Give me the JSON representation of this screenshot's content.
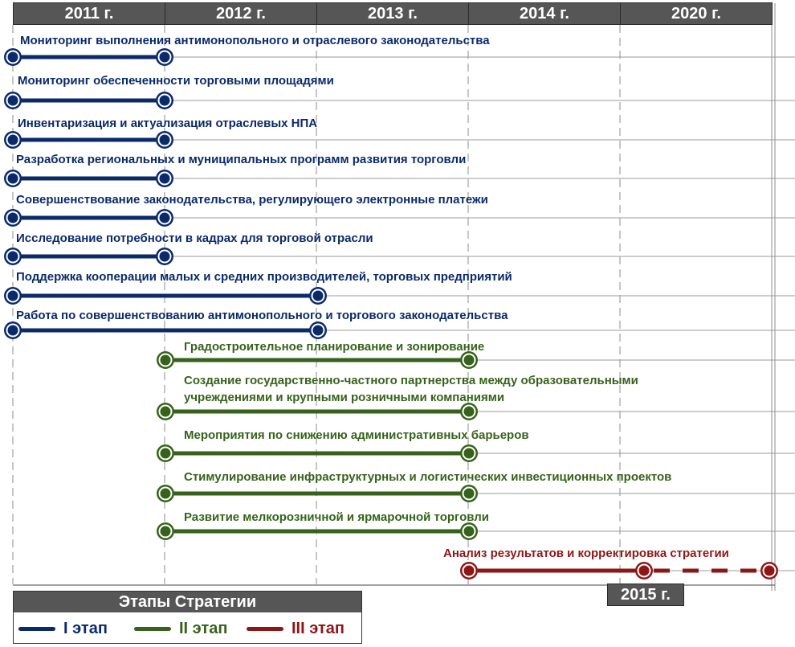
{
  "years": [
    "2011 г.",
    "2012 г.",
    "2013 г.",
    "2014 г.",
    "2020 г."
  ],
  "badge_year": "2015 г.",
  "colors": {
    "stage1": "#0b2a6a",
    "stage2": "#36621b",
    "stage3": "#8e1616",
    "header": "#565656"
  },
  "tasks": [
    {
      "label": "Мониторинг выполнения антимонопольного и отраслевого законодательства",
      "stage": 1
    },
    {
      "label": "Мониторинг обеспеченности торговыми площадями",
      "stage": 1
    },
    {
      "label": "Инвентаризация и актуализация отраслевых НПА",
      "stage": 1
    },
    {
      "label": "Разработка региональных и муниципальных программ развития торговли",
      "stage": 1
    },
    {
      "label": "Совершенствование законодательства, регулирующего электронные платежи",
      "stage": 1
    },
    {
      "label": "Исследование потребности в кадрах для торговой отрасли",
      "stage": 1
    },
    {
      "label": "Поддержка кооперации малых и средних производителей, торговых предприятий",
      "stage": 1
    },
    {
      "label": "Работа по совершенствованию антимонопольного и торгового законодательства",
      "stage": 1
    },
    {
      "label": "Градостроительное планирование и зонирование",
      "stage": 2
    },
    {
      "label_lines": [
        "Создание государственно-частного партнерства между образовательными",
        "учреждениями и крупными розничными компаниями"
      ],
      "stage": 2
    },
    {
      "label": "Мероприятия по снижению административных барьеров",
      "stage": 2
    },
    {
      "label": "Стимулирование инфраструктурных и логистических инвестиционных проектов",
      "stage": 2
    },
    {
      "label": "Развитие мелкорозничной и ярмарочной торговли",
      "stage": 2
    },
    {
      "label": "Анализ результатов и корректировка стратегии",
      "stage": 3
    }
  ],
  "legend": {
    "title": "Этапы Стратегии",
    "items": [
      {
        "label": "I этап",
        "stage": 1
      },
      {
        "label": "II этап",
        "stage": 2
      },
      {
        "label": "III этап",
        "stage": 3
      }
    ]
  }
}
